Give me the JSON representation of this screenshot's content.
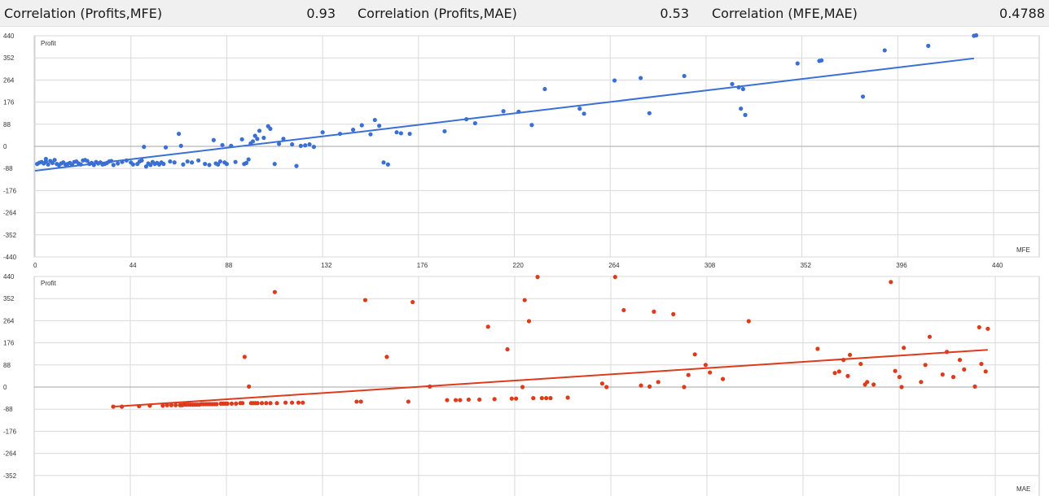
{
  "header": {
    "items": [
      {
        "label": "Correlation (Profits,MFE)",
        "value": "0.93"
      },
      {
        "label": "Correlation (Profits,MAE)",
        "value": "0.53"
      },
      {
        "label": "Correlation (MFE,MAE)",
        "value": "0.4788"
      }
    ]
  },
  "colors": {
    "mfe": "#3a6fd4",
    "mae": "#dd3b1b",
    "grid": "#d9d9d9",
    "zero": "#a6a6a6"
  },
  "chart_data": [
    {
      "type": "scatter",
      "title": "",
      "xlabel": "MFE",
      "ylabel": "Profit",
      "xlim": [
        0,
        440
      ],
      "ylim": [
        -440,
        440
      ],
      "x_ticks": [
        "0",
        "44",
        "88",
        "132",
        "176",
        "220",
        "264",
        "308",
        "352",
        "396",
        "440"
      ],
      "y_ticks": [
        "440",
        "352",
        "264",
        "176",
        "88",
        "0",
        "-88",
        "-176",
        "-264",
        "-352",
        "-440"
      ],
      "grid": true,
      "trendline": [
        [
          0,
          -97
        ],
        [
          431,
          350
        ]
      ],
      "points": [
        [
          1,
          -70
        ],
        [
          2,
          -65
        ],
        [
          3,
          -62
        ],
        [
          4,
          -68
        ],
        [
          5,
          -60
        ],
        [
          5,
          -50
        ],
        [
          6,
          -72
        ],
        [
          7,
          -58
        ],
        [
          8,
          -66
        ],
        [
          9,
          -54
        ],
        [
          10,
          -70
        ],
        [
          11,
          -75
        ],
        [
          12,
          -68
        ],
        [
          13,
          -64
        ],
        [
          14,
          -72
        ],
        [
          15,
          -70
        ],
        [
          16,
          -66
        ],
        [
          17,
          -74
        ],
        [
          18,
          -62
        ],
        [
          19,
          -60
        ],
        [
          20,
          -68
        ],
        [
          21,
          -72
        ],
        [
          22,
          -56
        ],
        [
          23,
          -54
        ],
        [
          24,
          -58
        ],
        [
          25,
          -70
        ],
        [
          26,
          -66
        ],
        [
          27,
          -74
        ],
        [
          28,
          -62
        ],
        [
          29,
          -68
        ],
        [
          30,
          -64
        ],
        [
          31,
          -72
        ],
        [
          32,
          -70
        ],
        [
          33,
          -66
        ],
        [
          34,
          -60
        ],
        [
          35,
          -58
        ],
        [
          36,
          -74
        ],
        [
          38,
          -68
        ],
        [
          40,
          -62
        ],
        [
          42,
          -56
        ],
        [
          44,
          -64
        ],
        [
          45,
          -72
        ],
        [
          47,
          -70
        ],
        [
          48,
          -60
        ],
        [
          49,
          -56
        ],
        [
          50,
          -2
        ],
        [
          51,
          -80
        ],
        [
          52,
          -68
        ],
        [
          53,
          -74
        ],
        [
          54,
          -62
        ],
        [
          55,
          -70
        ],
        [
          56,
          -66
        ],
        [
          57,
          -72
        ],
        [
          58,
          -64
        ],
        [
          59,
          -70
        ],
        [
          60,
          -4
        ],
        [
          62,
          -60
        ],
        [
          64,
          -64
        ],
        [
          66,
          50
        ],
        [
          67,
          2
        ],
        [
          68,
          -72
        ],
        [
          70,
          -60
        ],
        [
          72,
          -64
        ],
        [
          75,
          -56
        ],
        [
          78,
          -70
        ],
        [
          80,
          -74
        ],
        [
          82,
          25
        ],
        [
          83,
          -68
        ],
        [
          84,
          -72
        ],
        [
          85,
          -60
        ],
        [
          86,
          5
        ],
        [
          87,
          -64
        ],
        [
          88,
          -70
        ],
        [
          90,
          2
        ],
        [
          92,
          -62
        ],
        [
          95,
          28
        ],
        [
          96,
          -70
        ],
        [
          97,
          -66
        ],
        [
          98,
          -52
        ],
        [
          99,
          12
        ],
        [
          100,
          20
        ],
        [
          101,
          42
        ],
        [
          102,
          30
        ],
        [
          103,
          62
        ],
        [
          105,
          34
        ],
        [
          107,
          80
        ],
        [
          108,
          70
        ],
        [
          110,
          -70
        ],
        [
          112,
          10
        ],
        [
          114,
          30
        ],
        [
          118,
          8
        ],
        [
          120,
          -78
        ],
        [
          122,
          2
        ],
        [
          124,
          4
        ],
        [
          126,
          8
        ],
        [
          128,
          -2
        ],
        [
          132,
          56
        ],
        [
          140,
          50
        ],
        [
          146,
          66
        ],
        [
          150,
          84
        ],
        [
          154,
          48
        ],
        [
          156,
          105
        ],
        [
          158,
          82
        ],
        [
          160,
          -64
        ],
        [
          162,
          -72
        ],
        [
          166,
          56
        ],
        [
          168,
          52
        ],
        [
          172,
          50
        ],
        [
          188,
          60
        ],
        [
          198,
          108
        ],
        [
          202,
          92
        ],
        [
          215,
          140
        ],
        [
          222,
          138
        ],
        [
          228,
          85
        ],
        [
          234,
          228
        ],
        [
          250,
          150
        ],
        [
          252,
          130
        ],
        [
          266,
          262
        ],
        [
          278,
          272
        ],
        [
          282,
          132
        ],
        [
          298,
          280
        ],
        [
          320,
          248
        ],
        [
          323,
          235
        ],
        [
          324,
          150
        ],
        [
          325,
          228
        ],
        [
          326,
          125
        ],
        [
          350,
          330
        ],
        [
          360,
          340
        ],
        [
          361,
          342
        ],
        [
          380,
          198
        ],
        [
          390,
          382
        ],
        [
          410,
          400
        ],
        [
          431,
          440
        ],
        [
          432,
          442
        ]
      ]
    },
    {
      "type": "scatter",
      "title": "",
      "xlabel": "MAE",
      "ylabel": "Profit",
      "ylim": [
        -440,
        440
      ],
      "y_ticks": [
        "440",
        "352",
        "264",
        "176",
        "88",
        "0",
        "-88",
        "-176",
        "-264",
        "-352"
      ],
      "grid": true,
      "trendline": [
        [
          35,
          -78
        ],
        [
          441,
          148
        ]
      ],
      "points": [
        [
          35,
          -78
        ],
        [
          39,
          -78
        ],
        [
          47,
          -76
        ],
        [
          52,
          -74
        ],
        [
          58,
          -74
        ],
        [
          60,
          -72
        ],
        [
          62,
          -72
        ],
        [
          64,
          -72
        ],
        [
          66,
          -72
        ],
        [
          67,
          -72
        ],
        [
          68,
          -70
        ],
        [
          69,
          -70
        ],
        [
          70,
          -70
        ],
        [
          71,
          -70
        ],
        [
          72,
          -70
        ],
        [
          73,
          -70
        ],
        [
          74,
          -70
        ],
        [
          75,
          -70
        ],
        [
          76,
          -68
        ],
        [
          77,
          -68
        ],
        [
          78,
          -68
        ],
        [
          79,
          -68
        ],
        [
          80,
          -68
        ],
        [
          81,
          -68
        ],
        [
          82,
          -68
        ],
        [
          83,
          -68
        ],
        [
          85,
          -66
        ],
        [
          86,
          -66
        ],
        [
          87,
          -66
        ],
        [
          88,
          -66
        ],
        [
          90,
          -66
        ],
        [
          92,
          -66
        ],
        [
          94,
          -64
        ],
        [
          95,
          -64
        ],
        [
          96,
          120
        ],
        [
          98,
          2
        ],
        [
          99,
          -64
        ],
        [
          100,
          -64
        ],
        [
          101,
          -64
        ],
        [
          102,
          -64
        ],
        [
          104,
          -64
        ],
        [
          106,
          -64
        ],
        [
          108,
          -64
        ],
        [
          110,
          378
        ],
        [
          111,
          -64
        ],
        [
          115,
          -62
        ],
        [
          118,
          -62
        ],
        [
          121,
          -62
        ],
        [
          123,
          -62
        ],
        [
          148,
          -58
        ],
        [
          150,
          -58
        ],
        [
          152,
          346
        ],
        [
          162,
          120
        ],
        [
          172,
          -58
        ],
        [
          174,
          338
        ],
        [
          182,
          2
        ],
        [
          190,
          -52
        ],
        [
          194,
          -52
        ],
        [
          196,
          -52
        ],
        [
          200,
          -50
        ],
        [
          205,
          -50
        ],
        [
          209,
          240
        ],
        [
          212,
          -48
        ],
        [
          218,
          150
        ],
        [
          220,
          -46
        ],
        [
          222,
          -46
        ],
        [
          225,
          0
        ],
        [
          226,
          346
        ],
        [
          228,
          262
        ],
        [
          230,
          -44
        ],
        [
          232,
          438
        ],
        [
          234,
          -44
        ],
        [
          236,
          -44
        ],
        [
          238,
          -44
        ],
        [
          246,
          -42
        ],
        [
          262,
          14
        ],
        [
          264,
          0
        ],
        [
          268,
          438
        ],
        [
          272,
          306
        ],
        [
          280,
          6
        ],
        [
          284,
          2
        ],
        [
          286,
          300
        ],
        [
          288,
          20
        ],
        [
          295,
          290
        ],
        [
          300,
          0
        ],
        [
          302,
          48
        ],
        [
          305,
          130
        ],
        [
          310,
          88
        ],
        [
          312,
          58
        ],
        [
          318,
          32
        ],
        [
          330,
          262
        ],
        [
          362,
          152
        ],
        [
          370,
          56
        ],
        [
          372,
          62
        ],
        [
          374,
          108
        ],
        [
          376,
          44
        ],
        [
          377,
          128
        ],
        [
          382,
          92
        ],
        [
          384,
          10
        ],
        [
          385,
          20
        ],
        [
          388,
          10
        ],
        [
          396,
          418
        ],
        [
          398,
          64
        ],
        [
          400,
          40
        ],
        [
          401,
          0
        ],
        [
          402,
          156
        ],
        [
          410,
          20
        ],
        [
          412,
          88
        ],
        [
          414,
          200
        ],
        [
          420,
          50
        ],
        [
          422,
          140
        ],
        [
          425,
          40
        ],
        [
          428,
          108
        ],
        [
          430,
          70
        ],
        [
          435,
          2
        ],
        [
          437,
          238
        ],
        [
          438,
          92
        ],
        [
          440,
          62
        ],
        [
          441,
          232
        ]
      ]
    }
  ]
}
